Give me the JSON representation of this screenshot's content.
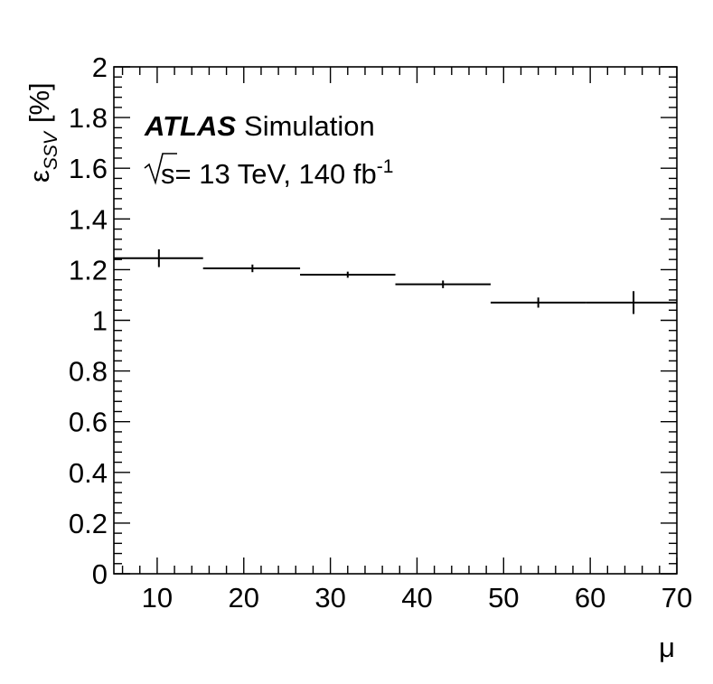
{
  "chart_data": {
    "type": "scatter",
    "xlabel": "μ",
    "ylabel_symbol": "ε",
    "ylabel_subscript": "SSV",
    "ylabel_unit": "[%]",
    "xlim": [
      5,
      70
    ],
    "ylim": [
      0,
      2
    ],
    "xticks": [
      10,
      20,
      30,
      40,
      50,
      60,
      70
    ],
    "yticks": [
      0,
      0.2,
      0.4,
      0.6,
      0.8,
      1,
      1.2,
      1.4,
      1.6,
      1.8,
      2
    ],
    "ytick_labels": [
      "0",
      "0.2",
      "0.4",
      "0.6",
      "0.8",
      "1",
      "1.2",
      "1.4",
      "1.6",
      "1.8",
      "2"
    ],
    "grid": false,
    "points": [
      {
        "x": 10.2,
        "xlow": 5,
        "xhigh": 15.3,
        "y": 1.245,
        "yerr": 0.035
      },
      {
        "x": 21.0,
        "xlow": 15.3,
        "xhigh": 26.5,
        "y": 1.205,
        "yerr": 0.015
      },
      {
        "x": 32.0,
        "xlow": 26.5,
        "xhigh": 37.5,
        "y": 1.18,
        "yerr": 0.012
      },
      {
        "x": 43.0,
        "xlow": 37.5,
        "xhigh": 48.5,
        "y": 1.142,
        "yerr": 0.015
      },
      {
        "x": 54.0,
        "xlow": 48.5,
        "xhigh": 59.5,
        "y": 1.07,
        "yerr": 0.02
      },
      {
        "x": 65.0,
        "xlow": 59.5,
        "xhigh": 70,
        "y": 1.07,
        "yerr": 0.045
      }
    ]
  },
  "labels": {
    "atlas": "ATLAS",
    "simulation": "Simulation",
    "energy_text": "s= 13 TeV, 140 fb",
    "lumi_exponent": "-1"
  }
}
